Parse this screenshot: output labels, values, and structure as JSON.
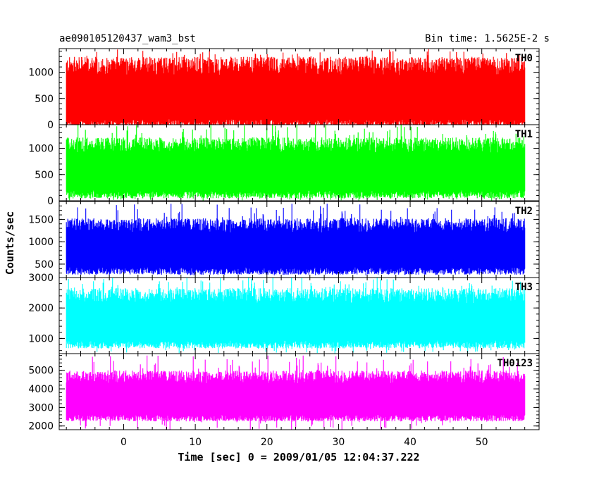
{
  "chart_data": {
    "type": "line",
    "title": "ae090105120437_wam3_bst",
    "subtitle": "Bin time: 1.5625E-2 s",
    "xlabel": "Time [sec] 0 = 2009/01/05 12:04:37.222",
    "ylabel": "Counts/sec",
    "xlim": [
      -9,
      58
    ],
    "x_range": [
      -8,
      56
    ],
    "x_ticks": [
      0,
      10,
      20,
      30,
      40,
      50
    ],
    "grid": false,
    "legend": "none",
    "panels": [
      {
        "name": "TH0",
        "color": "#ff0000",
        "ylim": [
          0,
          1450
        ],
        "y_ticks": [
          0,
          500,
          1000
        ],
        "band_low": 50,
        "band_high": 1050,
        "spike_min": 0,
        "spike_max": 1450
      },
      {
        "name": "TH1",
        "color": "#00ff00",
        "ylim": [
          0,
          1450
        ],
        "y_ticks": [
          0,
          500,
          1000
        ],
        "band_low": 150,
        "band_high": 1000,
        "spike_min": 0,
        "spike_max": 1450
      },
      {
        "name": "TH2",
        "color": "#0000ff",
        "ylim": [
          200,
          1900
        ],
        "y_ticks": [
          500,
          1000,
          1500
        ],
        "band_low": 380,
        "band_high": 1300,
        "spike_min": 250,
        "spike_max": 1850
      },
      {
        "name": "TH3",
        "color": "#00ffff",
        "ylim": [
          500,
          3000
        ],
        "y_ticks": [
          1000,
          2000,
          3000
        ],
        "band_low": 850,
        "band_high": 2300,
        "spike_min": 500,
        "spike_max": 3000
      },
      {
        "name": "TH0123",
        "color": "#ff00ff",
        "ylim": [
          1800,
          5900
        ],
        "y_ticks": [
          2000,
          3000,
          4000,
          5000
        ],
        "band_low": 2500,
        "band_high": 4500,
        "spike_min": 1800,
        "spike_max": 5800
      }
    ]
  }
}
